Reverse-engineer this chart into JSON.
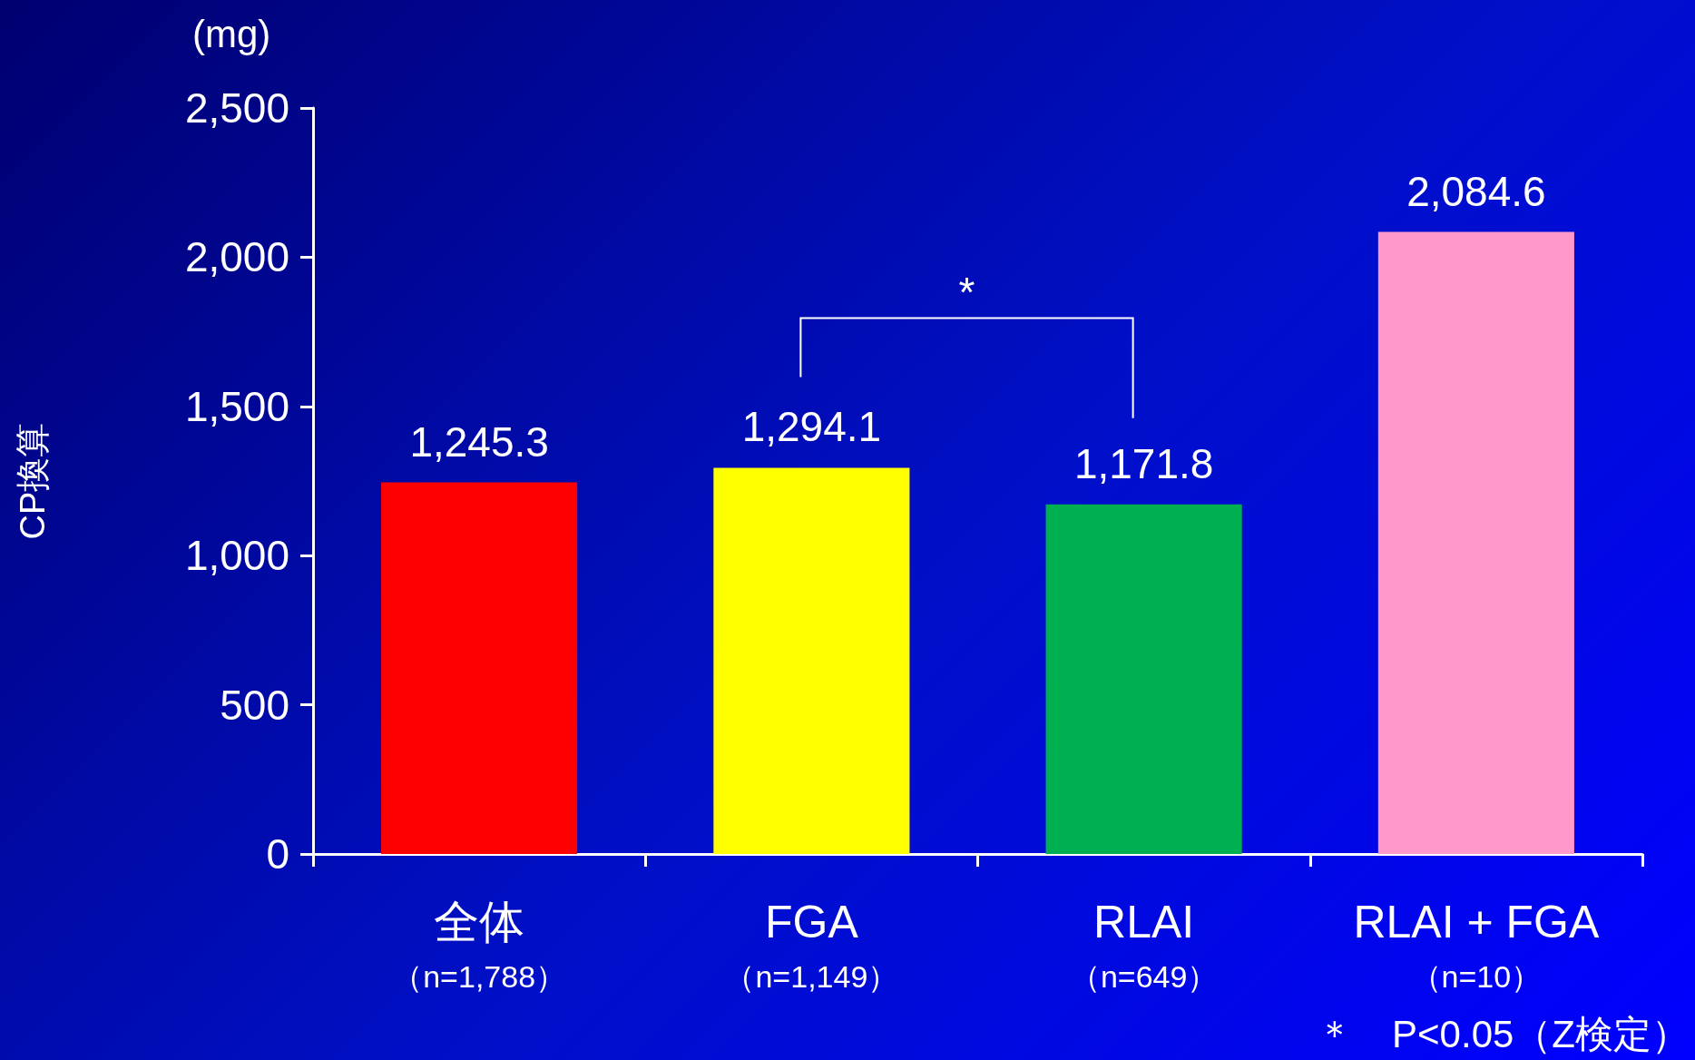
{
  "chart_data": {
    "type": "bar",
    "ylabel": "CP換算",
    "categories": [
      "全体（n=1,788）",
      "FGA（n=1,149）",
      "RLAI（n=649）",
      "RLAI + FGA（n=10）"
    ],
    "values": [
      1245.3,
      1294.1,
      1171.8,
      2084.6
    ],
    "colors": [
      "#ff0000",
      "#ffff00",
      "#00b050",
      "#ff99cc"
    ],
    "value_labels": [
      "1,245.3",
      "1,294.1",
      "1,171.8",
      "2,084.6"
    ],
    "ylim": [
      0,
      2500
    ],
    "yticks": [
      0,
      500,
      {
        "value": 1000,
        "label": "1,000"
      },
      {
        "value": 1500,
        "label": "1,500"
      },
      {
        "value": 2000,
        "label": "2,000"
      },
      {
        "value": 2500,
        "label": "2,500"
      }
    ],
    "grid": false,
    "annotations": [
      "(mg)",
      "*",
      "＊　P<0.05（Z検定）"
    ]
  }
}
